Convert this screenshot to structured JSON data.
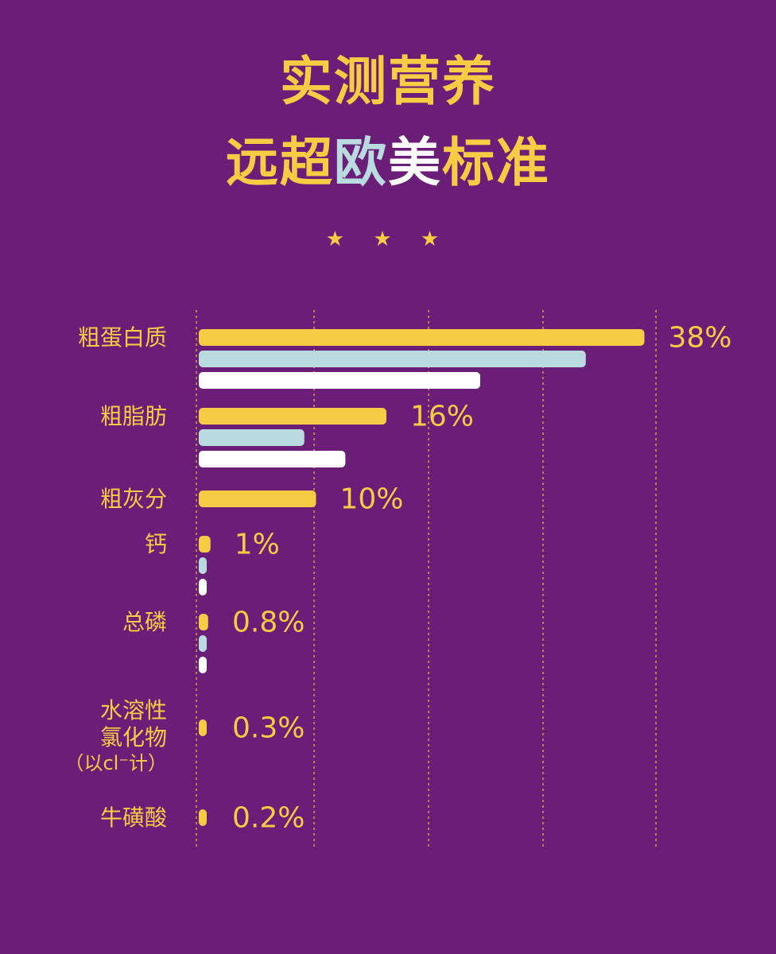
{
  "title": {
    "line1": "实测营养",
    "line2_part1": "远超",
    "line2_eu": "欧",
    "line2_us": "美",
    "line2_part2": "标准"
  },
  "stars": "★ ★ ★",
  "colors": {
    "background": "#6a1e77",
    "measured": "#f7cc45",
    "eu": "#b9dbe0",
    "us": "#ffffff",
    "gridline": "#c9a24a"
  },
  "chart_data": {
    "type": "bar",
    "orientation": "horizontal",
    "grid": true,
    "xlim": [
      0,
      40
    ],
    "categories": [
      {
        "label": [
          "粗蛋白质"
        ],
        "value_label": "38%"
      },
      {
        "label": [
          "粗脂肪"
        ],
        "value_label": "16%"
      },
      {
        "label": [
          "粗灰分"
        ],
        "value_label": "10%"
      },
      {
        "label": [
          "钙"
        ],
        "value_label": "1%"
      },
      {
        "label": [
          "总磷"
        ],
        "value_label": "0.8%"
      },
      {
        "label": [
          "水溶性",
          "氯化物",
          "（以cl⁻计）"
        ],
        "value_label": "0.3%"
      },
      {
        "label": [
          "牛磺酸"
        ],
        "value_label": "0.2%"
      }
    ],
    "series": [
      {
        "color_key": "measured",
        "values": [
          38,
          16,
          10,
          1,
          0.8,
          0.3,
          0.2
        ]
      },
      {
        "color_key": "eu",
        "values": [
          33,
          9,
          null,
          0.6,
          0.5,
          null,
          null
        ]
      },
      {
        "color_key": "us",
        "values": [
          24,
          12.5,
          null,
          0.5,
          0.4,
          null,
          null
        ]
      }
    ]
  }
}
